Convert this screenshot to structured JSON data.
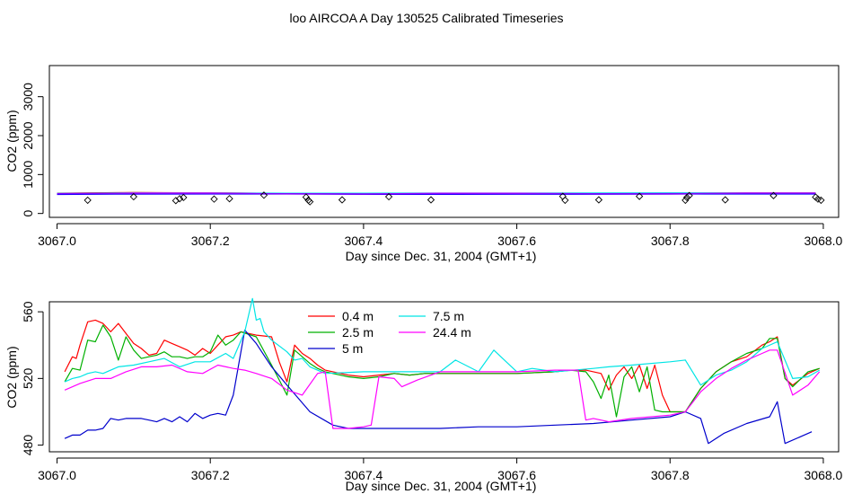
{
  "title": "loo AIRCOA A  Day 130525  Calibrated Timeseries",
  "chart_data": [
    {
      "type": "line",
      "xlabel": "Day since Dec. 31, 2004 (GMT+1)",
      "ylabel": "CO2 (ppm)",
      "xlim": [
        3066.99,
        3068.02
      ],
      "ylim": [
        -100,
        3800
      ],
      "xticks": [
        "3067.0",
        "3067.2",
        "3067.4",
        "3067.6",
        "3067.8",
        "3068.0"
      ],
      "yticks": [
        "0",
        "1000",
        "2000",
        "3000"
      ],
      "series": [
        {
          "color": "#ff0000",
          "x": [
            3067.0,
            3067.1,
            3067.2,
            3067.3,
            3067.4,
            3067.5,
            3067.6,
            3067.7,
            3067.8,
            3067.9,
            3067.99
          ],
          "values": [
            520,
            540,
            530,
            515,
            515,
            515,
            515,
            520,
            520,
            525,
            525
          ]
        },
        {
          "color": "#00b000",
          "x": [
            3067.0,
            3067.1,
            3067.2,
            3067.3,
            3067.4,
            3067.5,
            3067.6,
            3067.7,
            3067.8,
            3067.9,
            3067.99
          ],
          "values": [
            518,
            535,
            528,
            515,
            513,
            515,
            515,
            520,
            520,
            524,
            525
          ]
        },
        {
          "color": "#0000ff",
          "x": [
            3067.0,
            3067.1,
            3067.2,
            3067.3,
            3067.4,
            3067.5,
            3067.6,
            3067.7,
            3067.8,
            3067.9,
            3067.99
          ],
          "values": [
            488,
            498,
            500,
            500,
            490,
            490,
            492,
            494,
            498,
            500,
            500
          ]
        },
        {
          "color": "#00e5e5",
          "x": [
            3067.0,
            3067.1,
            3067.2,
            3067.3,
            3067.4,
            3067.5,
            3067.6,
            3067.7,
            3067.8,
            3067.9,
            3067.99
          ],
          "values": [
            515,
            530,
            530,
            520,
            520,
            525,
            525,
            528,
            530,
            525,
            525
          ]
        },
        {
          "color": "#ff00ff",
          "x": [
            3067.0,
            3067.1,
            3067.2,
            3067.3,
            3067.4,
            3067.5,
            3067.6,
            3067.7,
            3067.8,
            3067.9,
            3067.99
          ],
          "values": [
            512,
            525,
            525,
            505,
            500,
            520,
            520,
            510,
            505,
            525,
            525
          ]
        },
        {
          "color": "#8000ff",
          "x": [
            3067.0,
            3067.1,
            3067.2,
            3067.3,
            3067.4,
            3067.5,
            3067.6,
            3067.7,
            3067.8,
            3067.9,
            3067.99
          ],
          "values": [
            510,
            512,
            512,
            510,
            505,
            508,
            508,
            510,
            512,
            515,
            515
          ]
        }
      ],
      "points": {
        "marker": "diamond",
        "x": [
          3067.04,
          3067.1,
          3067.155,
          3067.16,
          3067.165,
          3067.205,
          3067.225,
          3067.27,
          3067.325,
          3067.328,
          3067.33,
          3067.372,
          3067.433,
          3067.488,
          3067.66,
          3067.663,
          3067.707,
          3067.76,
          3067.82,
          3067.822,
          3067.825,
          3067.872,
          3067.935,
          3067.99,
          3067.993,
          3067.997
        ],
        "values": [
          340,
          430,
          330,
          380,
          410,
          370,
          380,
          470,
          420,
          340,
          300,
          350,
          430,
          350,
          440,
          340,
          350,
          440,
          340,
          410,
          460,
          350,
          460,
          420,
          370,
          340
        ]
      }
    },
    {
      "type": "line",
      "xlabel": "Day since Dec. 31, 2004 (GMT+1)",
      "ylabel": "CO2 (ppm)",
      "xlim": [
        3066.99,
        3068.02
      ],
      "ylim": [
        476,
        566
      ],
      "xticks": [
        "3067.0",
        "3067.2",
        "3067.4",
        "3067.6",
        "3067.8",
        "3068.0"
      ],
      "yticks": [
        "480",
        "520",
        "560"
      ],
      "legend": "top-center",
      "series": [
        {
          "name": "0.4 m",
          "color": "#ff0000",
          "x": [
            3067.01,
            3067.02,
            3067.025,
            3067.03,
            3067.04,
            3067.05,
            3067.06,
            3067.07,
            3067.08,
            3067.09,
            3067.1,
            3067.11,
            3067.12,
            3067.13,
            3067.14,
            3067.15,
            3067.16,
            3067.17,
            3067.18,
            3067.19,
            3067.2,
            3067.21,
            3067.22,
            3067.23,
            3067.24,
            3067.26,
            3067.28,
            3067.29,
            3067.3,
            3067.31,
            3067.32,
            3067.33,
            3067.34,
            3067.35,
            3067.36,
            3067.38,
            3067.4,
            3067.42,
            3067.44,
            3067.46,
            3067.48,
            3067.5,
            3067.55,
            3067.6,
            3067.65,
            3067.67,
            3067.69,
            3067.7,
            3067.71,
            3067.72,
            3067.73,
            3067.74,
            3067.75,
            3067.76,
            3067.77,
            3067.78,
            3067.79,
            3067.8,
            3067.81,
            3067.82,
            3067.84,
            3067.86,
            3067.88,
            3067.9,
            3067.92,
            3067.93,
            3067.94,
            3067.95,
            3067.96,
            3067.98,
            3067.995
          ],
          "values": [
            524,
            533,
            532,
            540,
            554,
            555,
            553,
            548,
            553,
            547,
            541,
            538,
            534,
            535,
            543,
            541,
            539,
            537,
            534,
            538,
            535,
            540,
            545,
            546,
            548,
            546,
            545,
            530,
            518,
            540,
            535,
            532,
            528,
            525,
            524,
            522,
            521,
            522,
            523,
            522,
            523,
            523,
            523,
            523,
            524,
            525,
            525,
            524,
            523,
            513,
            522,
            527,
            520,
            528,
            514,
            528,
            510,
            500,
            500,
            500,
            514,
            524,
            530,
            533,
            540,
            542,
            545,
            520,
            516,
            523,
            526
          ]
        },
        {
          "name": "2.5 m",
          "color": "#00b000",
          "x": [
            3067.01,
            3067.02,
            3067.03,
            3067.04,
            3067.05,
            3067.06,
            3067.07,
            3067.08,
            3067.09,
            3067.1,
            3067.11,
            3067.12,
            3067.13,
            3067.14,
            3067.15,
            3067.16,
            3067.17,
            3067.18,
            3067.19,
            3067.2,
            3067.21,
            3067.22,
            3067.23,
            3067.24,
            3067.26,
            3067.28,
            3067.3,
            3067.31,
            3067.32,
            3067.33,
            3067.34,
            3067.35,
            3067.36,
            3067.38,
            3067.4,
            3067.42,
            3067.44,
            3067.46,
            3067.48,
            3067.5,
            3067.55,
            3067.6,
            3067.65,
            3067.67,
            3067.69,
            3067.7,
            3067.71,
            3067.72,
            3067.73,
            3067.74,
            3067.75,
            3067.76,
            3067.77,
            3067.78,
            3067.79,
            3067.8,
            3067.81,
            3067.82,
            3067.84,
            3067.86,
            3067.88,
            3067.9,
            3067.92,
            3067.93,
            3067.94,
            3067.95,
            3067.96,
            3067.98,
            3067.995
          ],
          "values": [
            518,
            526,
            525,
            543,
            542,
            552,
            545,
            531,
            545,
            537,
            532,
            533,
            534,
            536,
            533,
            533,
            532,
            533,
            533,
            536,
            546,
            540,
            543,
            548,
            545,
            528,
            510,
            537,
            533,
            529,
            526,
            524,
            523,
            521,
            520,
            521,
            523,
            522,
            523,
            523,
            523,
            523,
            524,
            525,
            524,
            518,
            508,
            522,
            497,
            521,
            527,
            512,
            527,
            501,
            500,
            500,
            500,
            500,
            514,
            524,
            530,
            535,
            538,
            544,
            544,
            520,
            515,
            524,
            526
          ]
        },
        {
          "name": "5 m",
          "color": "#0000cc",
          "x": [
            3067.01,
            3067.02,
            3067.03,
            3067.04,
            3067.05,
            3067.06,
            3067.07,
            3067.08,
            3067.09,
            3067.1,
            3067.11,
            3067.12,
            3067.13,
            3067.14,
            3067.15,
            3067.16,
            3067.17,
            3067.18,
            3067.19,
            3067.2,
            3067.21,
            3067.22,
            3067.23,
            3067.245,
            3067.26,
            3067.28,
            3067.3,
            3067.33,
            3067.36,
            3067.38,
            3067.4,
            3067.45,
            3067.5,
            3067.55,
            3067.6,
            3067.65,
            3067.7,
            3067.75,
            3067.8,
            3067.82,
            3067.84,
            3067.85,
            3067.87,
            3067.9,
            3067.93,
            3067.94,
            3067.95,
            3067.97,
            3067.985
          ],
          "values": [
            484,
            486,
            486,
            489,
            489,
            490,
            496,
            495,
            496,
            496,
            496,
            495,
            494,
            496,
            494,
            497,
            494,
            499,
            496,
            498,
            499,
            498,
            510,
            549,
            541,
            527,
            516,
            500,
            492,
            490,
            490,
            490,
            490,
            491,
            491,
            492,
            493,
            495,
            497,
            500,
            496,
            481,
            487,
            493,
            497,
            506,
            481,
            485,
            488
          ]
        },
        {
          "name": "7.5 m",
          "color": "#00e5e5",
          "x": [
            3067.01,
            3067.02,
            3067.03,
            3067.04,
            3067.05,
            3067.06,
            3067.08,
            3067.1,
            3067.12,
            3067.14,
            3067.16,
            3067.18,
            3067.2,
            3067.22,
            3067.23,
            3067.245,
            3067.255,
            3067.26,
            3067.265,
            3067.27,
            3067.28,
            3067.3,
            3067.31,
            3067.32,
            3067.33,
            3067.35,
            3067.4,
            3067.45,
            3067.5,
            3067.52,
            3067.55,
            3067.57,
            3067.6,
            3067.62,
            3067.65,
            3067.7,
            3067.72,
            3067.75,
            3067.8,
            3067.82,
            3067.84,
            3067.86,
            3067.88,
            3067.9,
            3067.92,
            3067.94,
            3067.96,
            3067.98,
            3067.995
          ],
          "values": [
            518,
            520,
            521,
            523,
            524,
            523,
            527,
            528,
            530,
            532,
            527,
            530,
            530,
            535,
            532,
            548,
            568,
            555,
            556,
            548,
            543,
            536,
            531,
            532,
            527,
            523,
            524,
            524,
            524,
            531,
            524,
            537,
            524,
            526,
            524,
            526,
            527,
            528,
            530,
            531,
            516,
            522,
            525,
            530,
            538,
            542,
            520,
            521,
            525
          ]
        },
        {
          "name": "24.4 m",
          "color": "#ff00ff",
          "x": [
            3067.01,
            3067.03,
            3067.05,
            3067.07,
            3067.09,
            3067.11,
            3067.13,
            3067.15,
            3067.17,
            3067.19,
            3067.21,
            3067.23,
            3067.245,
            3067.26,
            3067.28,
            3067.3,
            3067.32,
            3067.34,
            3067.35,
            3067.36,
            3067.38,
            3067.4,
            3067.41,
            3067.42,
            3067.44,
            3067.45,
            3067.47,
            3067.5,
            3067.55,
            3067.6,
            3067.65,
            3067.68,
            3067.69,
            3067.7,
            3067.72,
            3067.75,
            3067.8,
            3067.82,
            3067.84,
            3067.86,
            3067.88,
            3067.9,
            3067.92,
            3067.93,
            3067.94,
            3067.96,
            3067.98,
            3067.995
          ],
          "values": [
            513,
            517,
            520,
            520,
            524,
            527,
            527,
            528,
            524,
            523,
            528,
            526,
            525,
            523,
            520,
            513,
            510,
            523,
            524,
            490,
            490,
            491,
            492,
            521,
            520,
            515,
            519,
            524,
            524,
            524,
            525,
            525,
            495,
            496,
            494,
            496,
            498,
            500,
            512,
            520,
            526,
            531,
            535,
            537,
            537,
            510,
            516,
            524
          ]
        }
      ]
    }
  ]
}
